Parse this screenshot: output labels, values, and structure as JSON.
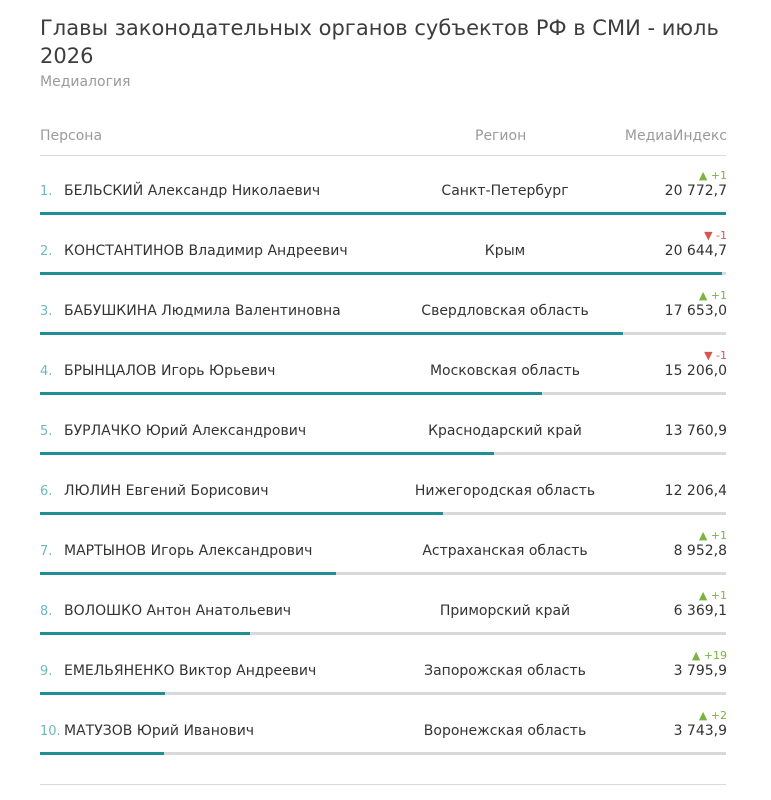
{
  "title": "Главы законодательных органов субъектов РФ в СМИ - июль 2026",
  "subtitle": "Медиалогия",
  "headers": {
    "person": "Персона",
    "region": "Регион",
    "media": "МедиаИндекс"
  },
  "chart_data": {
    "type": "bar",
    "orientation": "horizontal",
    "title": "Главы законодательных органов субъектов РФ в СМИ - июль 2026",
    "subtitle": "Медиалогия",
    "xlim": [
      0,
      20772.7
    ],
    "colors": {
      "bar": "#1f8f93",
      "track": "#d9d9d9",
      "up": "#7cb342",
      "down": "#d9534f"
    },
    "rows": [
      {
        "rank": "1.",
        "name": "БЕЛЬСКИЙ Александр Николаевич",
        "region": "Санкт-Петербург",
        "value": 20772.7,
        "value_label": "20 772,7",
        "change": "+1",
        "direction": "up"
      },
      {
        "rank": "2.",
        "name": "КОНСТАНТИНОВ Владимир Андреевич",
        "region": "Крым",
        "value": 20644.7,
        "value_label": "20 644,7",
        "change": "-1",
        "direction": "down"
      },
      {
        "rank": "3.",
        "name": "БАБУШКИНА Людмила Валентиновна",
        "region": "Свердловская область",
        "value": 17653.0,
        "value_label": "17 653,0",
        "change": "+1",
        "direction": "up"
      },
      {
        "rank": "4.",
        "name": "БРЫНЦАЛОВ Игорь Юрьевич",
        "region": "Московская область",
        "value": 15206.0,
        "value_label": "15 206,0",
        "change": "-1",
        "direction": "down"
      },
      {
        "rank": "5.",
        "name": "БУРЛАЧКО Юрий Александрович",
        "region": "Краснодарский край",
        "value": 13760.9,
        "value_label": "13 760,9",
        "change": "",
        "direction": ""
      },
      {
        "rank": "6.",
        "name": "ЛЮЛИН Евгений Борисович",
        "region": "Нижегородская область",
        "value": 12206.4,
        "value_label": "12 206,4",
        "change": "",
        "direction": ""
      },
      {
        "rank": "7.",
        "name": "МАРТЫНОВ Игорь Александрович",
        "region": "Астраханская область",
        "value": 8952.8,
        "value_label": "8 952,8",
        "change": "+1",
        "direction": "up"
      },
      {
        "rank": "8.",
        "name": "ВОЛОШКО Антон Анатольевич",
        "region": "Приморский край",
        "value": 6369.1,
        "value_label": "6 369,1",
        "change": "+1",
        "direction": "up"
      },
      {
        "rank": "9.",
        "name": "ЕМЕЛЬЯНЕНКО Виктор Андреевич",
        "region": "Запорожская область",
        "value": 3795.9,
        "value_label": "3 795,9",
        "change": "+19",
        "direction": "up"
      },
      {
        "rank": "10.",
        "name": "МАТУЗОВ Юрий Иванович",
        "region": "Воронежская область",
        "value": 3743.9,
        "value_label": "3 743,9",
        "change": "+2",
        "direction": "up"
      }
    ]
  }
}
